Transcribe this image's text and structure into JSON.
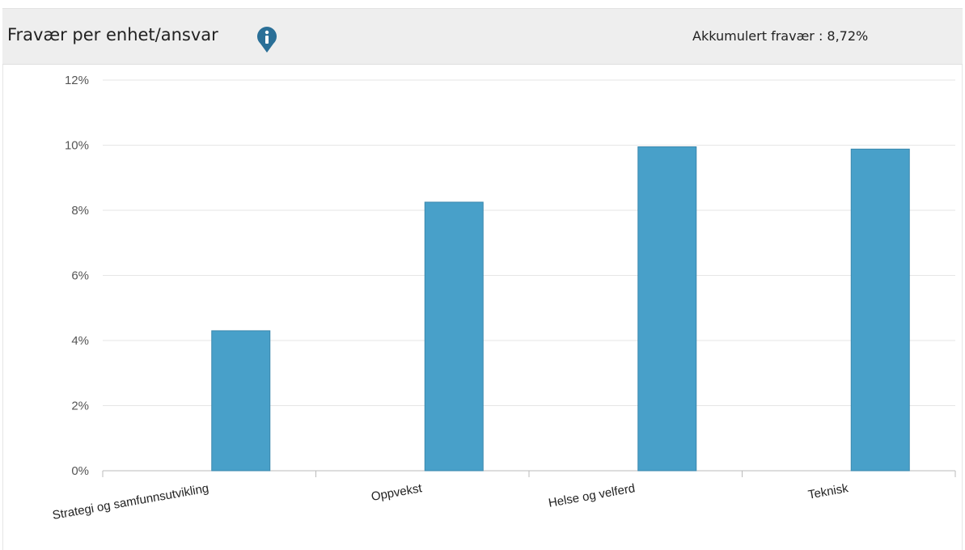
{
  "header": {
    "title": "Fravær per enhet/ansvar",
    "accumulated_label": "Akkumulert fravær : 8,72%"
  },
  "icons": {
    "info": "info-icon"
  },
  "colors": {
    "bar": "#48a0c9",
    "bar_border": "#3a87ad",
    "info_icon": "#2a6f97",
    "grid": "#e6e6e6",
    "axis": "#bbbbbb"
  },
  "chart_data": {
    "type": "bar",
    "categories": [
      "Strategi og samfunnsutvikling",
      "Oppvekst",
      "Helse og velferd",
      "Teknisk"
    ],
    "values": [
      4.3,
      8.25,
      9.95,
      9.88
    ],
    "title": "",
    "xlabel": "",
    "ylabel": "",
    "ylim": [
      0,
      12
    ],
    "yticks": [
      0,
      2,
      4,
      6,
      8,
      10,
      12
    ],
    "ytick_labels": [
      "0%",
      "2%",
      "4%",
      "6%",
      "8%",
      "10%",
      "12%"
    ],
    "grid": true,
    "legend": "none",
    "unit": "%"
  }
}
